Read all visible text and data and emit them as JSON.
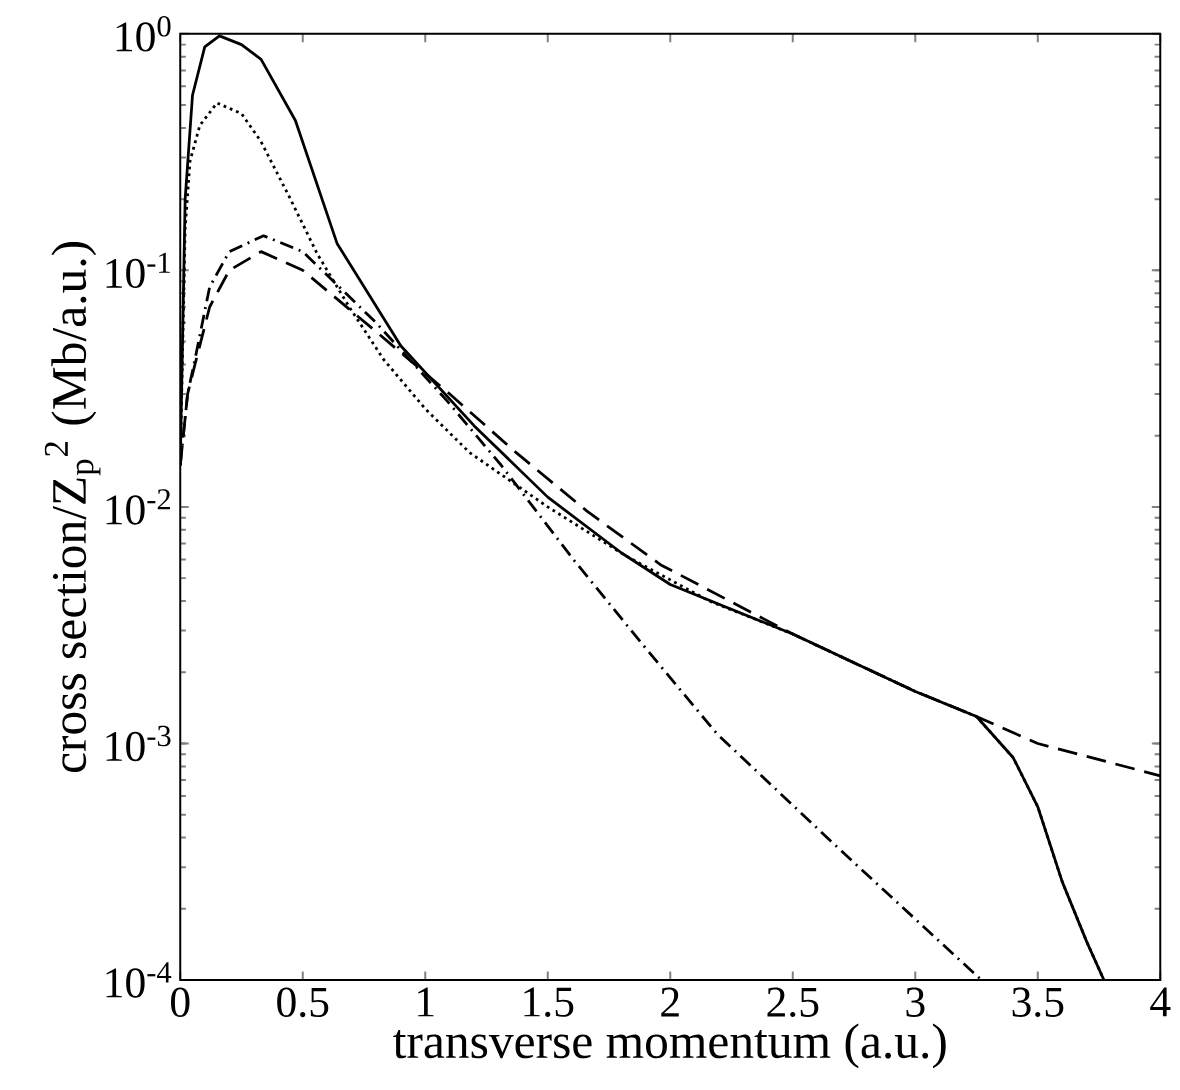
{
  "chart_data": {
    "type": "line",
    "xlabel": "transverse momentum (a.u.)",
    "ylabel": "cross section/Z$_{p}$$^{2}$ (Mb/a.u.)",
    "log": "y",
    "xlim": [
      0,
      4
    ],
    "ylim": [
      0.0001,
      1
    ],
    "xticks": [
      0,
      0.5,
      1,
      1.5,
      2,
      2.5,
      3,
      3.5,
      4
    ],
    "yticks": [
      {
        "value": 0.0001,
        "label": "10$^{-4}$"
      },
      {
        "value": 0.001,
        "label": "10$^{-3}$"
      },
      {
        "value": 0.01,
        "label": "10$^{-2}$"
      },
      {
        "value": 0.1,
        "label": "10$^{-1}$"
      },
      {
        "value": 1,
        "label": "10$^{0}$"
      }
    ],
    "marker": "none",
    "series": [
      {
        "color": "#000000",
        "line_style": "solid",
        "x": [
          0,
          0.02,
          0.05,
          0.1,
          0.16,
          0.25,
          0.33,
          0.47,
          0.64,
          0.9,
          1.2,
          1.5,
          1.8,
          2.0,
          2.5,
          3.0,
          3.25,
          3.4,
          3.5,
          3.6,
          3.7,
          3.77
        ],
        "values": [
          0.015,
          0.2,
          0.55,
          0.88,
          0.98,
          0.9,
          0.78,
          0.43,
          0.13,
          0.048,
          0.022,
          0.011,
          0.0064,
          0.0047,
          0.0029,
          0.00166,
          0.0013,
          0.00087,
          0.00054,
          0.00026,
          0.000145,
          0.0001
        ]
      },
      {
        "color": "#000000",
        "line_style": "dotted",
        "x": [
          0,
          0.02,
          0.04,
          0.08,
          0.15,
          0.25,
          0.33,
          0.45,
          0.56,
          0.69,
          0.83,
          1.0,
          1.18,
          1.5,
          1.82,
          2.16,
          2.5,
          3.0,
          3.25,
          3.4,
          3.5,
          3.6,
          3.7,
          3.77
        ],
        "values": [
          0.015,
          0.15,
          0.29,
          0.41,
          0.51,
          0.46,
          0.35,
          0.2,
          0.117,
          0.07,
          0.042,
          0.026,
          0.017,
          0.01,
          0.0062,
          0.004,
          0.0029,
          0.00166,
          0.0013,
          0.00087,
          0.00054,
          0.00026,
          0.000145,
          0.0001
        ]
      },
      {
        "color": "#000000",
        "line_style": "long dashed",
        "x": [
          0,
          0.03,
          0.06,
          0.12,
          0.2,
          0.33,
          0.5,
          0.8,
          1.1,
          1.37,
          1.66,
          1.96,
          2.5,
          3.0,
          3.25,
          3.5,
          4.0
        ],
        "values": [
          0.015,
          0.03,
          0.04,
          0.07,
          0.1,
          0.12,
          0.1,
          0.055,
          0.03,
          0.017,
          0.0096,
          0.0057,
          0.0029,
          0.00166,
          0.0013,
          0.001,
          0.00073
        ]
      },
      {
        "color": "#000000",
        "line_style": "dash dot",
        "x": [
          0,
          0.03,
          0.06,
          0.12,
          0.2,
          0.34,
          0.5,
          0.8,
          1.09,
          1.31,
          1.61,
          1.89,
          2.19,
          2.7,
          3.27
        ],
        "values": [
          0.015,
          0.03,
          0.042,
          0.085,
          0.12,
          0.14,
          0.12,
          0.06,
          0.028,
          0.015,
          0.0059,
          0.0026,
          0.0011,
          0.00035,
          0.0001
        ]
      }
    ]
  }
}
